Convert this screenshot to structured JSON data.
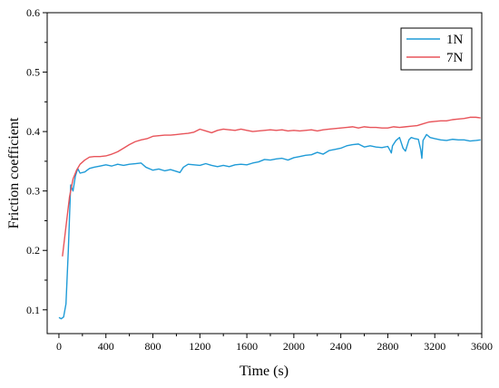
{
  "chart_data": {
    "type": "line",
    "xlabel": "Time (s)",
    "ylabel": "Friction coefficient",
    "xlim": [
      -100,
      3600
    ],
    "ylim": [
      0.06,
      0.6
    ],
    "x_ticks": [
      0,
      400,
      800,
      1200,
      1600,
      2000,
      2400,
      2800,
      3200,
      3600
    ],
    "y_ticks": [
      0.1,
      0.2,
      0.3,
      0.4,
      0.5,
      0.6
    ],
    "x_tick_labels": [
      "0",
      "400",
      "800",
      "1200",
      "1600",
      "2000",
      "2400",
      "2800",
      "3200",
      "3600"
    ],
    "y_tick_labels": [
      "0.1",
      "0.2",
      "0.3",
      "0.4",
      "0.5",
      "0.6"
    ],
    "grid": false,
    "legend_position": "top-right",
    "series": [
      {
        "name": "1N",
        "color": "#1f9bd7",
        "points": [
          [
            0,
            0.087
          ],
          [
            20,
            0.085
          ],
          [
            40,
            0.088
          ],
          [
            60,
            0.11
          ],
          [
            80,
            0.2
          ],
          [
            100,
            0.31
          ],
          [
            120,
            0.3
          ],
          [
            140,
            0.325
          ],
          [
            160,
            0.338
          ],
          [
            180,
            0.33
          ],
          [
            220,
            0.332
          ],
          [
            260,
            0.338
          ],
          [
            300,
            0.34
          ],
          [
            350,
            0.342
          ],
          [
            400,
            0.344
          ],
          [
            450,
            0.342
          ],
          [
            500,
            0.345
          ],
          [
            550,
            0.343
          ],
          [
            600,
            0.345
          ],
          [
            650,
            0.346
          ],
          [
            700,
            0.347
          ],
          [
            740,
            0.34
          ],
          [
            800,
            0.335
          ],
          [
            850,
            0.337
          ],
          [
            900,
            0.334
          ],
          [
            950,
            0.336
          ],
          [
            1000,
            0.333
          ],
          [
            1030,
            0.331
          ],
          [
            1060,
            0.34
          ],
          [
            1100,
            0.345
          ],
          [
            1150,
            0.344
          ],
          [
            1200,
            0.343
          ],
          [
            1250,
            0.346
          ],
          [
            1300,
            0.343
          ],
          [
            1350,
            0.341
          ],
          [
            1400,
            0.343
          ],
          [
            1450,
            0.341
          ],
          [
            1500,
            0.344
          ],
          [
            1550,
            0.345
          ],
          [
            1600,
            0.344
          ],
          [
            1650,
            0.347
          ],
          [
            1700,
            0.349
          ],
          [
            1750,
            0.353
          ],
          [
            1800,
            0.352
          ],
          [
            1850,
            0.354
          ],
          [
            1900,
            0.355
          ],
          [
            1950,
            0.352
          ],
          [
            2000,
            0.356
          ],
          [
            2050,
            0.358
          ],
          [
            2100,
            0.36
          ],
          [
            2150,
            0.361
          ],
          [
            2200,
            0.365
          ],
          [
            2250,
            0.362
          ],
          [
            2300,
            0.368
          ],
          [
            2350,
            0.37
          ],
          [
            2400,
            0.372
          ],
          [
            2450,
            0.376
          ],
          [
            2500,
            0.378
          ],
          [
            2550,
            0.379
          ],
          [
            2600,
            0.374
          ],
          [
            2650,
            0.376
          ],
          [
            2700,
            0.374
          ],
          [
            2750,
            0.373
          ],
          [
            2800,
            0.375
          ],
          [
            2820,
            0.368
          ],
          [
            2830,
            0.364
          ],
          [
            2840,
            0.376
          ],
          [
            2870,
            0.385
          ],
          [
            2900,
            0.39
          ],
          [
            2930,
            0.372
          ],
          [
            2950,
            0.367
          ],
          [
            2980,
            0.386
          ],
          [
            3000,
            0.39
          ],
          [
            3030,
            0.388
          ],
          [
            3060,
            0.387
          ],
          [
            3080,
            0.37
          ],
          [
            3090,
            0.355
          ],
          [
            3100,
            0.385
          ],
          [
            3130,
            0.395
          ],
          [
            3160,
            0.39
          ],
          [
            3200,
            0.388
          ],
          [
            3250,
            0.386
          ],
          [
            3300,
            0.385
          ],
          [
            3350,
            0.387
          ],
          [
            3400,
            0.386
          ],
          [
            3450,
            0.386
          ],
          [
            3500,
            0.384
          ],
          [
            3550,
            0.385
          ],
          [
            3590,
            0.386
          ]
        ]
      },
      {
        "name": "7N",
        "color": "#e8545a",
        "points": [
          [
            30,
            0.19
          ],
          [
            60,
            0.24
          ],
          [
            90,
            0.29
          ],
          [
            120,
            0.32
          ],
          [
            150,
            0.335
          ],
          [
            180,
            0.345
          ],
          [
            220,
            0.352
          ],
          [
            260,
            0.357
          ],
          [
            300,
            0.358
          ],
          [
            350,
            0.358
          ],
          [
            400,
            0.359
          ],
          [
            450,
            0.362
          ],
          [
            500,
            0.366
          ],
          [
            550,
            0.372
          ],
          [
            600,
            0.378
          ],
          [
            650,
            0.383
          ],
          [
            700,
            0.386
          ],
          [
            750,
            0.388
          ],
          [
            800,
            0.392
          ],
          [
            850,
            0.393
          ],
          [
            900,
            0.394
          ],
          [
            950,
            0.394
          ],
          [
            1000,
            0.395
          ],
          [
            1050,
            0.396
          ],
          [
            1100,
            0.397
          ],
          [
            1150,
            0.399
          ],
          [
            1200,
            0.404
          ],
          [
            1250,
            0.401
          ],
          [
            1300,
            0.398
          ],
          [
            1350,
            0.402
          ],
          [
            1400,
            0.404
          ],
          [
            1450,
            0.403
          ],
          [
            1500,
            0.402
          ],
          [
            1550,
            0.404
          ],
          [
            1600,
            0.402
          ],
          [
            1650,
            0.4
          ],
          [
            1700,
            0.401
          ],
          [
            1750,
            0.402
          ],
          [
            1800,
            0.403
          ],
          [
            1850,
            0.402
          ],
          [
            1900,
            0.403
          ],
          [
            1950,
            0.401
          ],
          [
            2000,
            0.402
          ],
          [
            2050,
            0.401
          ],
          [
            2100,
            0.402
          ],
          [
            2150,
            0.403
          ],
          [
            2200,
            0.401
          ],
          [
            2250,
            0.403
          ],
          [
            2300,
            0.404
          ],
          [
            2350,
            0.405
          ],
          [
            2400,
            0.406
          ],
          [
            2450,
            0.407
          ],
          [
            2500,
            0.408
          ],
          [
            2550,
            0.406
          ],
          [
            2600,
            0.408
          ],
          [
            2650,
            0.407
          ],
          [
            2700,
            0.407
          ],
          [
            2750,
            0.406
          ],
          [
            2800,
            0.406
          ],
          [
            2850,
            0.408
          ],
          [
            2900,
            0.407
          ],
          [
            2950,
            0.408
          ],
          [
            3000,
            0.409
          ],
          [
            3050,
            0.41
          ],
          [
            3100,
            0.413
          ],
          [
            3150,
            0.416
          ],
          [
            3200,
            0.417
          ],
          [
            3250,
            0.418
          ],
          [
            3300,
            0.418
          ],
          [
            3350,
            0.42
          ],
          [
            3400,
            0.421
          ],
          [
            3450,
            0.422
          ],
          [
            3500,
            0.424
          ],
          [
            3550,
            0.424
          ],
          [
            3590,
            0.423
          ]
        ]
      }
    ]
  }
}
